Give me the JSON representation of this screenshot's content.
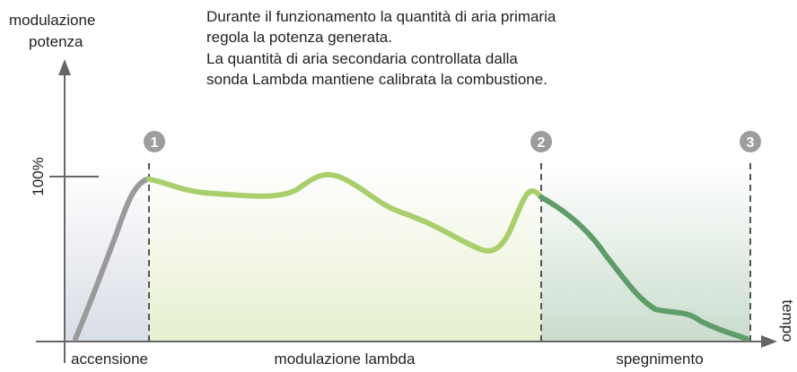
{
  "y_axis_label": [
    "modulazione",
    "potenza"
  ],
  "x_axis_label": "tempo",
  "description": [
    "Durante il funzionamento la quantità di aria primaria",
    "regola la potenza generata.",
    "La quantità di aria secondaria controllata dalla",
    "sonda Lambda mantiene calibrata la combustione."
  ],
  "level_label": "100%",
  "markers": [
    "1",
    "2",
    "3"
  ],
  "phases": [
    "accensione",
    "modulazione lambda",
    "spegnimento"
  ]
}
